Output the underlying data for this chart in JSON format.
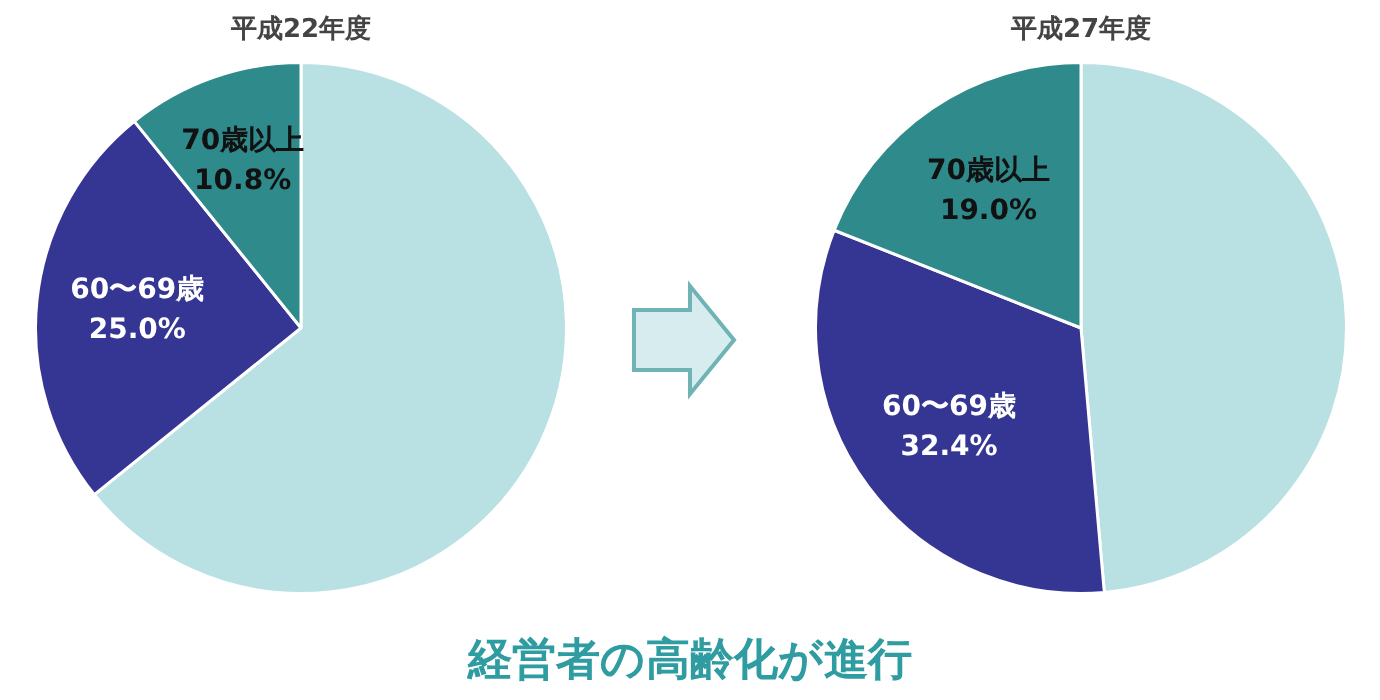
{
  "chart_data": [
    {
      "type": "pie",
      "title": "平成22年度",
      "categories": [
        null,
        "60〜69歳",
        "70歳以上"
      ],
      "values": [
        64.2,
        25.0,
        10.8
      ],
      "colors": [
        "#b9e0e3",
        "#353593",
        "#2f8a8c"
      ],
      "value_labels": [
        null,
        "25.0%",
        "10.8%"
      ],
      "annotations": [
        "経営者の高齢化が進行"
      ]
    },
    {
      "type": "pie",
      "title": "平成27年度",
      "categories": [
        null,
        "60〜69歳",
        "70歳以上"
      ],
      "values": [
        48.6,
        32.4,
        19.0
      ],
      "colors": [
        "#b9e0e3",
        "#353593",
        "#2f8a8c"
      ],
      "value_labels": [
        null,
        "32.4%",
        "19.0%"
      ]
    }
  ]
}
